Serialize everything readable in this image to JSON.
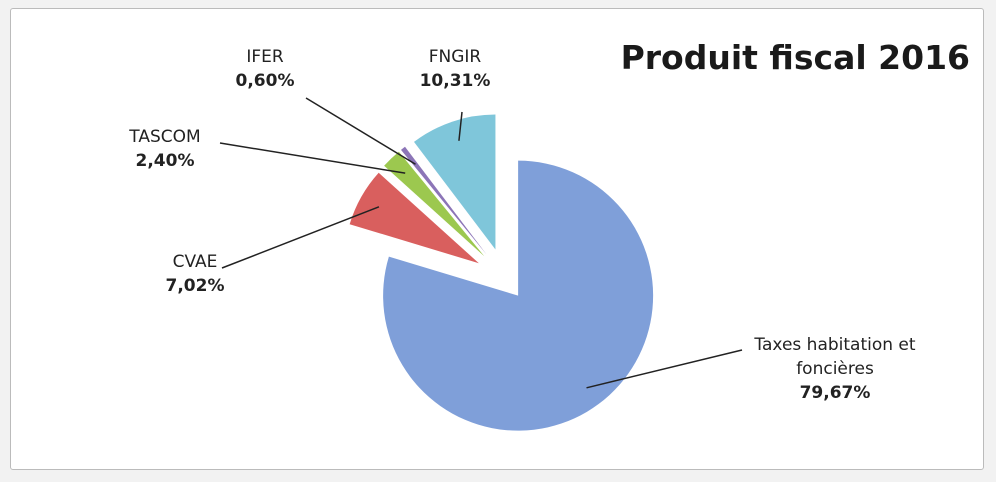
{
  "chart_data": {
    "type": "pie",
    "title": "Produit fiscal 2016",
    "categories": [
      "Taxes habitation et foncières",
      "CVAE",
      "TASCOM",
      "IFER",
      "FNGIR"
    ],
    "values": [
      79.67,
      7.02,
      2.4,
      0.6,
      10.31
    ],
    "value_labels": [
      "79,67%",
      "7,02%",
      "2,40%",
      "0,60%",
      "10,31%"
    ],
    "colors": [
      "#7f9fd9",
      "#d95f5e",
      "#9cc84f",
      "#8c75b7",
      "#7fc6da"
    ]
  }
}
